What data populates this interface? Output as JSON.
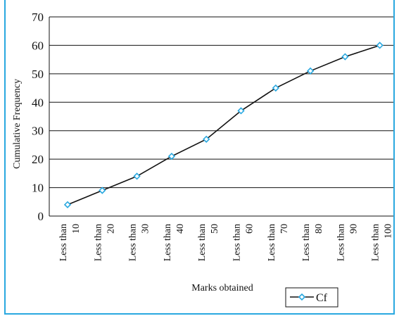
{
  "chart_data": {
    "type": "line",
    "categories": [
      "Less than 10",
      "Less than 20",
      "Less than 30",
      "Less than 40",
      "Less than 50",
      "Less than 60",
      "Less than 70",
      "Less than 80",
      "Less than 90",
      "Less than 100"
    ],
    "category_lines": [
      [
        "Less than",
        "10"
      ],
      [
        "Less than",
        "20"
      ],
      [
        "Less than",
        "30"
      ],
      [
        "Less than",
        "40"
      ],
      [
        "Less than",
        "50"
      ],
      [
        "Less than",
        "60"
      ],
      [
        "Less than",
        "70"
      ],
      [
        "Less than",
        "80"
      ],
      [
        "Less than",
        "90"
      ],
      [
        "Less than",
        "100"
      ]
    ],
    "series": [
      {
        "name": "Cf",
        "values": [
          4,
          9,
          14,
          21,
          27,
          37,
          45,
          51,
          56,
          60
        ]
      }
    ],
    "xlabel": "Marks obtained",
    "ylabel": "Cumulative Frequency",
    "ylim": [
      0,
      70
    ],
    "yticks": [
      "0",
      "10",
      "20",
      "30",
      "40",
      "50",
      "60",
      "70"
    ],
    "grid": true,
    "legend": "bottom-right",
    "colors": {
      "line": "#111111",
      "marker": "#29a8e0",
      "frame": "#29a8e0",
      "grid": "#111111"
    }
  }
}
